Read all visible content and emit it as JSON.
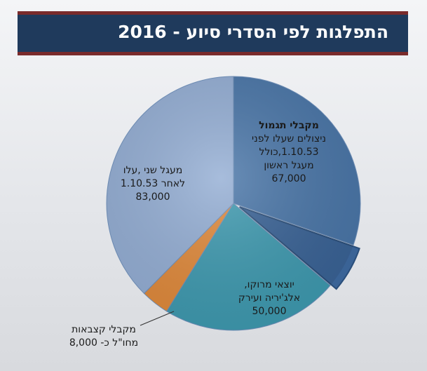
{
  "title": "התפלגות לפי הסדרי סיוע - 2016",
  "colors": {
    "title_bg": "#1f3a5c",
    "title_border": "#7a2b2b",
    "slice_recipients": "#4a76a8",
    "slice_exploded": "#3a6396",
    "slice_morocco": "#3f9ab0",
    "slice_abroad": "#e08a3c",
    "slice_second": "#94aed4"
  },
  "chart_data": {
    "type": "pie",
    "title": "התפלגות לפי הסדרי סיוע - 2016",
    "slices": [
      {
        "key": "recipients",
        "value": 67000,
        "lines": [
          "מקבלי תגמול",
          "ניצולים שעלו לפני",
          "1.10.53,כולל",
          "מעגל ראשון",
          "67,000"
        ]
      },
      {
        "key": "exploded",
        "value": 13000,
        "lines": []
      },
      {
        "key": "morocco",
        "value": 50000,
        "lines": [
          "יוצאי מרוקו,",
          "אלג'יריה ועירק",
          "50,000"
        ]
      },
      {
        "key": "abroad",
        "value": 8000,
        "lines": [
          "מקבלי קצבאות",
          "מחו\"ל כ-  8,000"
        ]
      },
      {
        "key": "second",
        "value": 83000,
        "lines": [
          "מעגל שני ,עלו",
          "לאחר 1.10.53",
          "83,000"
        ]
      }
    ]
  }
}
